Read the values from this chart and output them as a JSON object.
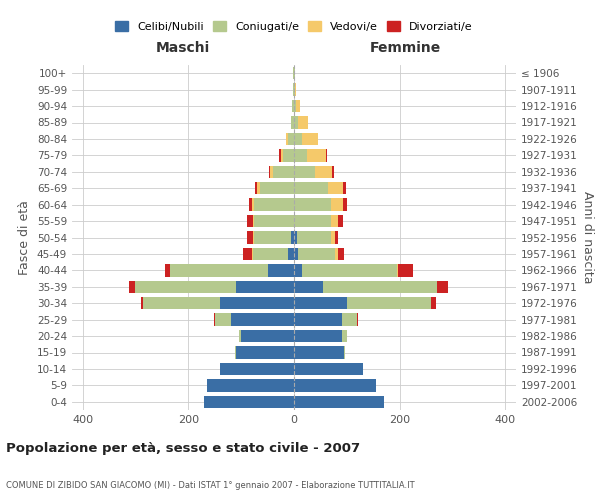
{
  "age_groups": [
    "100+",
    "95-99",
    "90-94",
    "85-89",
    "80-84",
    "75-79",
    "70-74",
    "65-69",
    "60-64",
    "55-59",
    "50-54",
    "45-49",
    "40-44",
    "35-39",
    "30-34",
    "25-29",
    "20-24",
    "15-19",
    "10-14",
    "5-9",
    "0-4"
  ],
  "birth_years": [
    "≤ 1906",
    "1907-1911",
    "1912-1916",
    "1917-1921",
    "1922-1926",
    "1927-1931",
    "1932-1936",
    "1937-1941",
    "1942-1946",
    "1947-1951",
    "1952-1956",
    "1957-1961",
    "1962-1966",
    "1967-1971",
    "1972-1976",
    "1977-1981",
    "1982-1986",
    "1987-1991",
    "1992-1996",
    "1997-2001",
    "2002-2006"
  ],
  "maschi": {
    "celibi": [
      0,
      0,
      0,
      0,
      0,
      0,
      0,
      0,
      0,
      0,
      5,
      12,
      50,
      110,
      140,
      120,
      100,
      110,
      140,
      165,
      170
    ],
    "coniugati": [
      1,
      1,
      3,
      5,
      12,
      20,
      40,
      65,
      75,
      75,
      70,
      65,
      185,
      190,
      145,
      30,
      5,
      2,
      0,
      0,
      0
    ],
    "vedovi": [
      0,
      0,
      0,
      0,
      3,
      5,
      5,
      5,
      5,
      3,
      3,
      2,
      0,
      0,
      0,
      0,
      0,
      0,
      0,
      0,
      0
    ],
    "divorziati": [
      0,
      0,
      0,
      0,
      0,
      3,
      3,
      4,
      5,
      10,
      10,
      18,
      10,
      12,
      5,
      2,
      0,
      0,
      0,
      0,
      0
    ]
  },
  "femmine": {
    "nubili": [
      0,
      0,
      0,
      0,
      0,
      0,
      0,
      0,
      0,
      0,
      5,
      8,
      15,
      55,
      100,
      90,
      90,
      95,
      130,
      155,
      170
    ],
    "coniugate": [
      1,
      1,
      3,
      8,
      15,
      25,
      40,
      65,
      70,
      70,
      65,
      70,
      180,
      215,
      160,
      30,
      10,
      2,
      0,
      0,
      0
    ],
    "vedove": [
      1,
      2,
      8,
      18,
      30,
      35,
      32,
      28,
      22,
      14,
      8,
      6,
      2,
      0,
      0,
      0,
      0,
      0,
      0,
      0,
      0
    ],
    "divorziate": [
      0,
      0,
      0,
      0,
      0,
      3,
      3,
      5,
      8,
      8,
      6,
      10,
      28,
      22,
      8,
      2,
      0,
      0,
      0,
      0,
      0
    ]
  },
  "colors": {
    "celibi": "#3a6ea5",
    "coniugati": "#b5c98e",
    "vedovi": "#f5c96a",
    "divorziati": "#cc2222"
  },
  "xlim": 420,
  "title": "Popolazione per età, sesso e stato civile - 2007",
  "subtitle": "COMUNE DI ZIBIDO SAN GIACOMO (MI) - Dati ISTAT 1° gennaio 2007 - Elaborazione TUTTITALIA.IT",
  "xlabel_left": "Maschi",
  "xlabel_right": "Femmine",
  "ylabel_left": "Fasce di età",
  "ylabel_right": "Anni di nascita",
  "legend_labels": [
    "Celibi/Nubili",
    "Coniugati/e",
    "Vedovi/e",
    "Divorziati/e"
  ],
  "background_color": "#ffffff",
  "grid_color": "#cccccc"
}
